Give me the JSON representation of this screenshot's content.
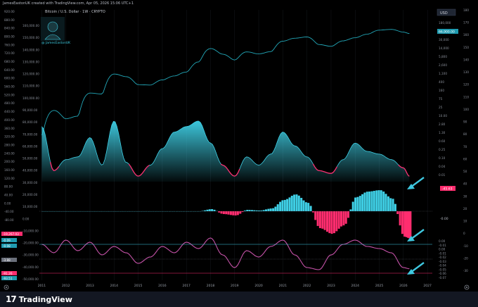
{
  "header": {
    "credit": "JamesEastonUK created with TradingView.com, Apr 05, 2026 15:06 UTC+1",
    "symbol": "Bitcoin / U.S. Dollar · 1W · CRYPTO",
    "handle": "@ JamesEastonUK",
    "currency": "USD",
    "price_tag": "66,900.00"
  },
  "branding": {
    "name": "TradingView"
  },
  "colors": {
    "bg": "#000000",
    "price": "#22a7b8",
    "pos": "#3fd0e6",
    "neg": "#ff2d6f",
    "osc": "#c552a8"
  },
  "axes": {
    "outer_left_ticks": [
      "920.00",
      "880.00",
      "840.00",
      "800.00",
      "760.00",
      "720.00",
      "680.00",
      "640.00",
      "600.00",
      "560.00",
      "520.00",
      "480.00",
      "440.00",
      "400.00",
      "360.00",
      "320.00",
      "280.00",
      "240.00",
      "200.00",
      "160.00",
      "120.00",
      "80.00",
      "40.00",
      "0.00",
      "-40.00",
      "-80.00"
    ],
    "inner_left_ticks": [
      "160,000.00",
      "150,000.00",
      "140,000.00",
      "130,000.00",
      "120,000.00",
      "110,000.00",
      "100,000.00",
      "90,000.00",
      "80,000.00",
      "70,000.00",
      "60,000.00",
      "50,000.00",
      "40,000.00",
      "30,000.00",
      "20,000.00",
      "10,000.00",
      "0.00",
      "-10,000.00",
      "-20,000.00",
      "-30,000.00",
      "-40,000.00",
      "-50,000.00"
    ],
    "right_log_ticks": [
      "180,000",
      "90,000",
      "30,000",
      "14,000",
      "5,800",
      "2,600",
      "1,100",
      "400",
      "160",
      "75",
      "25",
      "10.00",
      "2.80",
      "1.30",
      "0.60",
      "0.25",
      "0.10",
      "0.04",
      "0.01"
    ],
    "far_right_ticks": [
      "180",
      "170",
      "160",
      "150",
      "140",
      "130",
      "120",
      "110",
      "100",
      "90",
      "80",
      "70",
      "60",
      "50",
      "40",
      "30",
      "20",
      "10",
      "0",
      "-10",
      "-20",
      "-30"
    ],
    "right_lower_ticks": [
      "0.00",
      "-0.01",
      "0.00",
      "-0.01",
      "-0.02",
      "-0.03",
      "-0.04",
      "-0.05",
      "-0.06",
      "-0.07"
    ],
    "x_ticks": [
      "2011",
      "2012",
      "2013",
      "2014",
      "2015",
      "2016",
      "2017",
      "2018",
      "2019",
      "2020",
      "2021",
      "2022",
      "2023",
      "2024",
      "2025",
      "2026",
      "2027"
    ]
  },
  "labels": {
    "osc_tag": "-45.63",
    "hist_tag": "-0.00",
    "left_tag_1": "-19,267.03",
    "left_tag_2": "-0.09",
    "left_tag_3": "-0.08",
    "left_tag_4": "-3.88",
    "left_tag_5": "-91.26",
    "left_tag_6": "-93.51"
  },
  "chart_data": {
    "type": "line",
    "x": [
      2011,
      2011.5,
      2012,
      2012.5,
      2013,
      2013.5,
      2014,
      2014.5,
      2015,
      2015.5,
      2016,
      2016.5,
      2017,
      2017.5,
      2018,
      2018.5,
      2019,
      2019.5,
      2020,
      2020.5,
      2021,
      2021.5,
      2022,
      2022.5,
      2023,
      2023.5,
      2024,
      2024.5,
      2025,
      2025.5,
      2026,
      2026.25
    ],
    "series": [
      {
        "values": [
          1,
          15,
          6,
          8,
          100,
          90,
          800,
          600,
          250,
          240,
          420,
          650,
          1000,
          3000,
          13000,
          7000,
          3700,
          9000,
          7200,
          9200,
          29000,
          40000,
          46000,
          20000,
          16500,
          30000,
          42000,
          62000,
          97000,
          105000,
          78000,
          66900
        ]
      },
      {
        "values": [
          440,
          280,
          320,
          330,
          400,
          300,
          460,
          310,
          260,
          300,
          360,
          420,
          440,
          460,
          380,
          300,
          260,
          330,
          300,
          340,
          420,
          370,
          330,
          280,
          270,
          320,
          380,
          350,
          340,
          320,
          290,
          260
        ]
      },
      {
        "values": [
          0,
          0,
          0,
          0,
          0,
          0,
          0,
          0,
          0,
          0,
          0,
          0,
          0,
          0,
          1500,
          -2000,
          -3000,
          1000,
          500,
          2000,
          8000,
          12000,
          6000,
          -12000,
          -16000,
          -10000,
          10000,
          14000,
          15000,
          9000,
          -18000,
          -19267
        ]
      },
      {
        "values": [
          70,
          30,
          90,
          40,
          80,
          20,
          60,
          30,
          -20,
          10,
          60,
          30,
          80,
          50,
          100,
          20,
          -40,
          40,
          10,
          60,
          90,
          20,
          -40,
          -50,
          20,
          70,
          90,
          60,
          50,
          30,
          -40,
          -45.63
        ]
      }
    ]
  }
}
